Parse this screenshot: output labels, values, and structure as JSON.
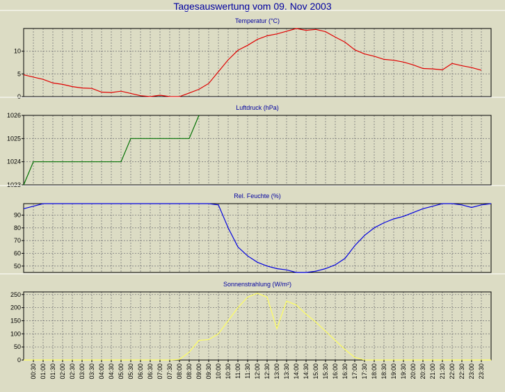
{
  "title": "Tagesauswertung vom 09. Nov 2003",
  "x_labels": [
    "00:30",
    "01:00",
    "01:30",
    "02:00",
    "02:30",
    "03:00",
    "03:30",
    "04:00",
    "04:30",
    "05:00",
    "05:30",
    "06:00",
    "06:30",
    "07:00",
    "07:30",
    "08:00",
    "08:30",
    "09:00",
    "09:30",
    "10:00",
    "10:30",
    "11:00",
    "11:30",
    "12:00",
    "12:30",
    "13:00",
    "13:30",
    "14:00",
    "14:30",
    "15:00",
    "15:30",
    "16:00",
    "16:30",
    "17:00",
    "17:30",
    "18:00",
    "18:30",
    "19:00",
    "19:30",
    "20:00",
    "20:30",
    "21:00",
    "21:30",
    "22:00",
    "22:30",
    "23:00",
    "23:30"
  ],
  "colors": {
    "background": "#dcdcc4",
    "plot_background": "#dcdcc4",
    "grid": "#7a7a7a",
    "title": "#0000a0",
    "temperature": "#e00000",
    "pressure": "#007000",
    "humidity": "#0000e0",
    "radiation": "#ffff60"
  },
  "chart_data": [
    {
      "type": "line",
      "title": "Temperatur (°C)",
      "series": [
        {
          "values": [
            4.8,
            4.3,
            3.8,
            3.0,
            2.7,
            2.2,
            1.9,
            1.8,
            1.0,
            0.9,
            1.2,
            0.7,
            0.2,
            0.0,
            0.3,
            0.0,
            0.0,
            0.8,
            1.6,
            2.9,
            5.5,
            8.1,
            10.2,
            11.3,
            12.6,
            13.4,
            13.8,
            14.4,
            15.0,
            14.6,
            14.8,
            14.3,
            13.1,
            12.0,
            10.3,
            9.4,
            8.9,
            8.2,
            8.0,
            7.6,
            7.0,
            6.2,
            6.1,
            5.9,
            7.3,
            6.8,
            6.4,
            5.8
          ]
        }
      ],
      "ylim": [
        0,
        15
      ],
      "yticks": [
        0,
        5,
        10
      ]
    },
    {
      "type": "line",
      "title": "Luftdruck (hPa)",
      "series": [
        {
          "values": [
            1023,
            1024,
            1024,
            1024,
            1024,
            1024,
            1024,
            1024,
            1024,
            1024,
            1024,
            1025,
            1025,
            1025,
            1025,
            1025,
            1025,
            1025,
            1026
          ]
        }
      ],
      "ylim": [
        1023,
        1026
      ],
      "yticks": [
        1023,
        1024,
        1025,
        1026
      ]
    },
    {
      "type": "line",
      "title": "Rel. Feuchte (%)",
      "series": [
        {
          "values": [
            95,
            97,
            99,
            99,
            99,
            99,
            99,
            99,
            99,
            99,
            99,
            99,
            99,
            99,
            99,
            99,
            99,
            99,
            99,
            99,
            98,
            80,
            65,
            58,
            53,
            50,
            48,
            47,
            45,
            45,
            46,
            48,
            51,
            56,
            66,
            74,
            80,
            84,
            87,
            89,
            92,
            95,
            97,
            99,
            99,
            98,
            96,
            98,
            99
          ]
        }
      ],
      "ylim": [
        45,
        99
      ],
      "yticks": [
        50,
        60,
        70,
        80,
        90
      ]
    },
    {
      "type": "line",
      "title": "Sonnenstrahlung (W/m²)",
      "series": [
        {
          "values": [
            0,
            0,
            0,
            0,
            0,
            0,
            0,
            0,
            0,
            0,
            0,
            0,
            0,
            0,
            0,
            0,
            2,
            30,
            75,
            78,
            100,
            150,
            200,
            240,
            255,
            240,
            120,
            225,
            210,
            175,
            145,
            110,
            75,
            40,
            10,
            0,
            0,
            0,
            0,
            0,
            0,
            0,
            0,
            0,
            0,
            0,
            0,
            0,
            0
          ]
        }
      ],
      "ylim": [
        0,
        260
      ],
      "yticks": [
        0,
        50,
        100,
        150,
        200,
        250
      ]
    }
  ]
}
